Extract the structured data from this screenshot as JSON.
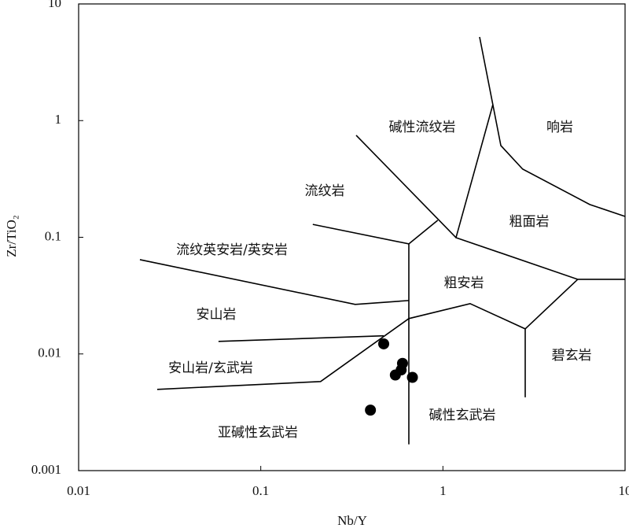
{
  "chart_data": {
    "type": "scatter",
    "x_label": "Nb/Y",
    "y_label": "Zr/TiO₂",
    "x_log": true,
    "y_log": true,
    "xlim": [
      0.01,
      10
    ],
    "ylim": [
      0.001,
      10
    ],
    "xticks": [
      0.01,
      0.1,
      1,
      10
    ],
    "yticks": [
      0.001,
      0.01,
      0.1,
      1,
      10
    ],
    "color": "#000000",
    "series": [
      {
        "x": [
          0.473,
          0.6,
          0.59,
          0.548,
          0.68,
          0.4
        ],
        "values": [
          0.0122,
          0.0083,
          0.0073,
          0.0066,
          0.0063,
          0.0033
        ]
      }
    ],
    "boundaries": [
      {
        "x": [
          0.334,
          1.18
        ],
        "y": [
          0.748,
          0.0993
        ]
      },
      {
        "x": [
          0.193,
          0.65,
          0.937
        ],
        "y": [
          0.129,
          0.0878,
          0.14
        ]
      },
      {
        "x": [
          0.65,
          0.65
        ],
        "y": [
          0.0878,
          0.00168
        ]
      },
      {
        "x": [
          1.59,
          1.88,
          1.18,
          5.5,
          10
        ],
        "y": [
          5.21,
          1.37,
          0.0993,
          0.0436,
          0.0436
        ]
      },
      {
        "x": [
          1.88,
          2.08,
          2.74,
          6.4,
          10
        ],
        "y": [
          1.37,
          0.611,
          0.384,
          0.191,
          0.151
        ]
      },
      {
        "x": [
          0.0217,
          0.33,
          0.65
        ],
        "y": [
          0.0643,
          0.0266,
          0.0287
        ]
      },
      {
        "x": [
          0.0586,
          0.473
        ],
        "y": [
          0.0128,
          0.0143
        ]
      },
      {
        "x": [
          0.027,
          0.213,
          0.65,
          1.41,
          2.83,
          5.5
        ],
        "y": [
          0.00497,
          0.0058,
          0.0201,
          0.027,
          0.0164,
          0.0436
        ]
      },
      {
        "x": [
          2.83,
          2.83
        ],
        "y": [
          0.0164,
          0.00425
        ]
      }
    ],
    "field_labels": [
      "碱性流纹岩",
      "响岩",
      "流纹岩",
      "粗面岩",
      "流纹英安岩/英安岩",
      "粗安岩",
      "安山岩",
      "碧玄岩",
      "安山岩/玄武岩",
      "碱性玄武岩",
      "亚碱性玄武岩"
    ]
  }
}
